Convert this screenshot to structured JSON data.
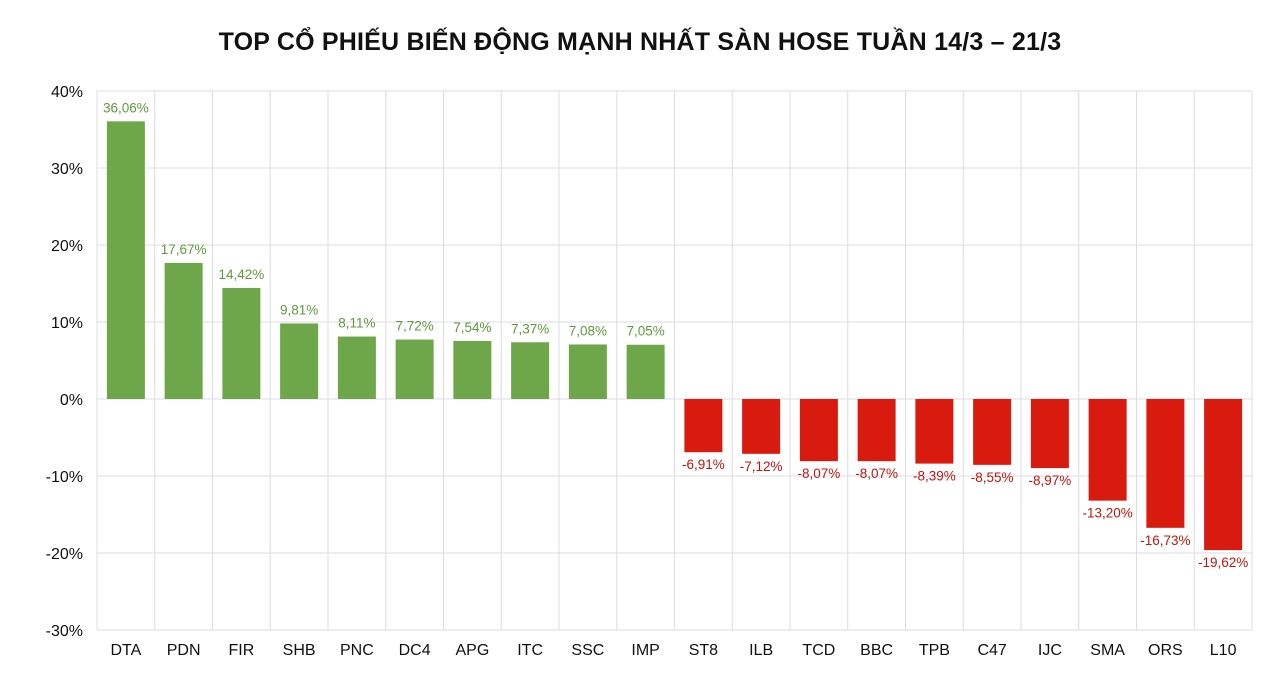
{
  "chart_data": {
    "type": "bar",
    "title": "TOP CỔ PHIẾU BIẾN ĐỘNG MẠNH NHẤT SÀN HOSE TUẦN 14/3 – 21/3",
    "xlabel": "",
    "ylabel": "",
    "categories": [
      "DTA",
      "PDN",
      "FIR",
      "SHB",
      "PNC",
      "DC4",
      "APG",
      "ITC",
      "SSC",
      "IMP",
      "ST8",
      "ILB",
      "TCD",
      "BBC",
      "TPB",
      "C47",
      "IJC",
      "SMA",
      "ORS",
      "L10"
    ],
    "values": [
      36.06,
      17.67,
      14.42,
      9.81,
      8.11,
      7.72,
      7.54,
      7.37,
      7.08,
      7.05,
      -6.91,
      -7.12,
      -8.07,
      -8.07,
      -8.39,
      -8.55,
      -8.97,
      -13.2,
      -16.73,
      -19.62
    ],
    "data_labels": [
      "36,06%",
      "17,67%",
      "14,42%",
      "9,81%",
      "8,11%",
      "7,72%",
      "7,54%",
      "7,37%",
      "7,08%",
      "7,05%",
      "-6,91%",
      "-7,12%",
      "-8,07%",
      "-8,07%",
      "-8,39%",
      "-8,55%",
      "-8,97%",
      "-13,20%",
      "-16,73%",
      "-19,62%"
    ],
    "ylim": [
      -30,
      40
    ],
    "y_ticks": [
      40,
      30,
      20,
      10,
      0,
      -10,
      -20,
      -30
    ],
    "y_tick_labels": [
      "40%",
      "30%",
      "20%",
      "10%",
      "0%",
      "-10%",
      "-20%",
      "-30%"
    ],
    "grid": true,
    "legend": "none",
    "colors": {
      "positive": "#6ea64a",
      "negative": "#d91a0e",
      "positive_label": "#5e9a3c",
      "negative_label": "#c0150c",
      "grid": "#dcdce6"
    }
  }
}
